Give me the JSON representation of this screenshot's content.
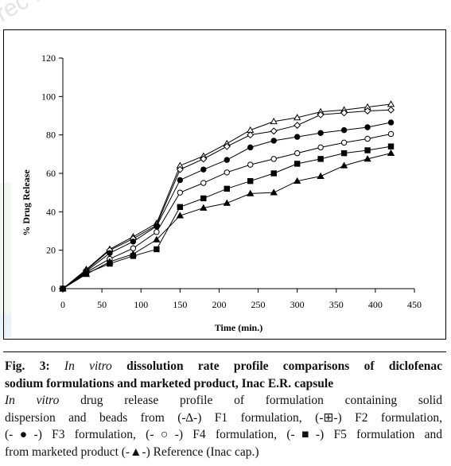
{
  "watermark": {
    "text": "rec  N F",
    "color": "#e7e7e7"
  },
  "chart_data": {
    "type": "line",
    "xlabel": "Time (min.)",
    "ylabel": "% Drug Release",
    "xlim": [
      0,
      450
    ],
    "ylim": [
      0,
      120
    ],
    "x_ticks": [
      "0",
      "50",
      "100",
      "150",
      "200",
      "250",
      "300",
      "350",
      "400",
      "450"
    ],
    "y_ticks": [
      "0",
      "20",
      "40",
      "60",
      "80",
      "100",
      "120"
    ],
    "grid": false,
    "legend": "none",
    "x": [
      0,
      30,
      60,
      90,
      120,
      150,
      180,
      210,
      240,
      270,
      300,
      330,
      360,
      390,
      420
    ],
    "series": [
      {
        "marker": "open-triangle",
        "values": [
          0,
          10,
          20.5,
          27,
          34,
          64,
          69,
          75.5,
          82.5,
          87,
          89,
          92,
          93,
          94.5,
          96
        ]
      },
      {
        "marker": "open-diamond",
        "values": [
          0,
          9.5,
          20,
          26,
          33,
          62,
          67.5,
          74,
          80,
          82,
          85,
          90.5,
          91.5,
          92.5,
          93
        ]
      },
      {
        "marker": "filled-circle",
        "values": [
          0,
          9,
          18.5,
          24.5,
          32.5,
          56.5,
          62,
          67,
          73.5,
          77,
          79,
          81,
          82.5,
          84,
          86.5
        ]
      },
      {
        "marker": "open-circle",
        "values": [
          0,
          8.5,
          15.5,
          21,
          29.5,
          50,
          55,
          60.5,
          64.5,
          67.5,
          70.5,
          73.5,
          76,
          78,
          80.5
        ]
      },
      {
        "marker": "filled-square",
        "values": [
          0,
          8,
          13,
          17,
          20.5,
          42.5,
          47,
          52,
          56,
          60,
          65,
          67.5,
          70.5,
          72,
          74
        ]
      },
      {
        "marker": "filled-triangle",
        "values": [
          0,
          7.5,
          14,
          18,
          25.5,
          38,
          42,
          44.5,
          49.5,
          50,
          56,
          58.5,
          64,
          67.5,
          70.5
        ]
      }
    ]
  },
  "caption": {
    "fig_label": "Fig. 3:",
    "title_italic": "In vitro",
    "title_rest_1": " dissolution rate profile comparisons of diclofenac",
    "title_line2": "sodium formulations and marketed product, Inac E.R. capsule",
    "desc_italic": "In vitro",
    "desc_rest_1": " drug release profile of formulation containing solid",
    "desc_line2": "dispersion and beads from (-∆-) F1 formulation, (-⊞-) F2 formulation,",
    "desc_line3": "(-●-) F3 formulation, (-○-) F4 formulation, (-■-) F5 formulation and",
    "desc_line4": "from marketed product (-▲-) Reference (Inac cap.)"
  }
}
